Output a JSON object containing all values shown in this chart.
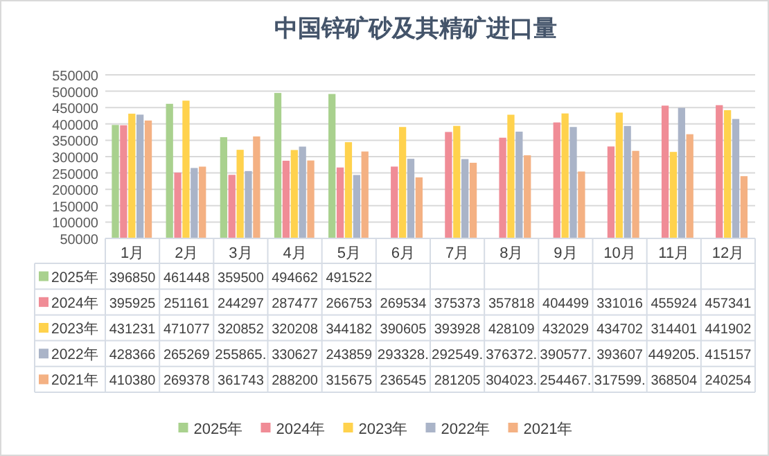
{
  "chart_data": {
    "type": "bar",
    "title": "中国锌矿砂及其精矿进口量",
    "categories": [
      "1月",
      "2月",
      "3月",
      "4月",
      "5月",
      "6月",
      "7月",
      "8月",
      "9月",
      "10月",
      "11月",
      "12月"
    ],
    "ylim": [
      50000,
      550000
    ],
    "yticks": [
      50000,
      100000,
      150000,
      200000,
      250000,
      300000,
      350000,
      400000,
      450000,
      500000,
      550000
    ],
    "grid": "y",
    "legend": "bottom",
    "series": [
      {
        "name": "2025年",
        "color": "#a9d18e",
        "values": [
          396850,
          461448,
          359500,
          494662,
          491522,
          null,
          null,
          null,
          null,
          null,
          null,
          null
        ],
        "value_labels": [
          "396850",
          "461448",
          "359500",
          "494662",
          "491522",
          null,
          null,
          null,
          null,
          null,
          null,
          null
        ]
      },
      {
        "name": "2024年",
        "color": "#f08c96",
        "values": [
          395925,
          251161,
          244297,
          287477,
          266753,
          269534,
          375373,
          357818,
          404499,
          331016,
          455924,
          457341
        ],
        "value_labels": [
          "395925",
          "251161",
          "244297",
          "287477",
          "266753",
          "269534",
          "375373",
          "357818",
          "404499",
          "331016",
          "455924",
          "457341"
        ]
      },
      {
        "name": "2023年",
        "color": "#ffd24d",
        "values": [
          431231,
          471077,
          320852,
          320208,
          344182,
          390605,
          393928,
          428109,
          432029,
          434702,
          314401,
          441902
        ],
        "value_labels": [
          "431231",
          "471077",
          "320852",
          "320208",
          "344182",
          "390605",
          "393928",
          "428109",
          "432029",
          "434702",
          "314401",
          "441902"
        ]
      },
      {
        "name": "2022年",
        "color": "#aab4c8",
        "values": [
          428366,
          265269,
          255865,
          330627,
          243859,
          293328,
          292549,
          376372,
          390577,
          393607,
          449205,
          415157
        ],
        "value_labels": [
          "428366",
          "265269",
          "255865.",
          "330627",
          "243859",
          "293328.",
          "292549.",
          "376372.",
          "390577.",
          "393607",
          "449205.",
          "415157"
        ]
      },
      {
        "name": "2021年",
        "color": "#f4b183",
        "values": [
          410380,
          269378,
          361743,
          288200,
          315675,
          236545,
          281205,
          304023,
          254467,
          317599,
          368504,
          240254
        ],
        "value_labels": [
          "410380",
          "269378",
          "361743",
          "288200",
          "315675",
          "236545",
          "281205",
          "304023.",
          "254467.",
          "317599.",
          "368504",
          "240254"
        ]
      }
    ]
  }
}
